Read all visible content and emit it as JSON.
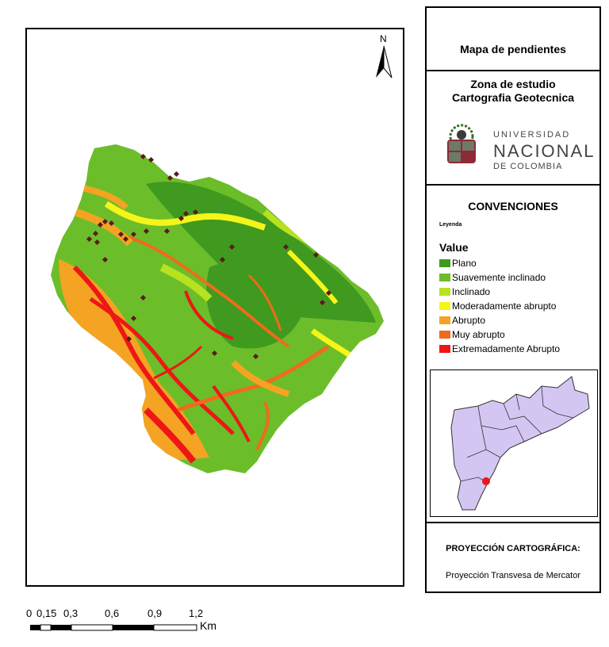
{
  "map": {
    "north_label": "N"
  },
  "sidebar": {
    "title": "Mapa de pendientes",
    "zone_line1": "Zona de estudio",
    "zone_line2": "Cartografia Geotecnica",
    "logo": {
      "line1": "UNIVERSIDAD",
      "line2": "NACIONAL",
      "line3": "DE COLOMBIA"
    },
    "conventions_title": "CONVENCIONES",
    "legend_subtitle": "Leyenda",
    "legend_heading": "Value",
    "legend_items": [
      {
        "label": "Plano",
        "color": "#3f9a1f"
      },
      {
        "label": "Suavemente inclinado",
        "color": "#6cbd2a"
      },
      {
        "label": "Inclinado",
        "color": "#b6e21f"
      },
      {
        "label": "Moderadamente abrupto",
        "color": "#f5f51a"
      },
      {
        "label": "Abrupto",
        "color": "#f4a323"
      },
      {
        "label": "Muy abrupto",
        "color": "#f06b1a"
      },
      {
        "label": "Extremadamente Abrupto",
        "color": "#ee1616"
      }
    ],
    "projection_title": "PROYECCIÓN CARTOGRÁFICA:",
    "projection_text": "Proyección Transvesa de Mercator"
  },
  "scale": {
    "ticks": [
      "0",
      "0,15",
      "0,3",
      "0,6",
      "0,9",
      "1,2"
    ],
    "unit": "Km"
  },
  "colors": {
    "point_marker": "#5a1a1a",
    "inset_fill": "#d4c6f2",
    "study_area": "#e8161b"
  }
}
